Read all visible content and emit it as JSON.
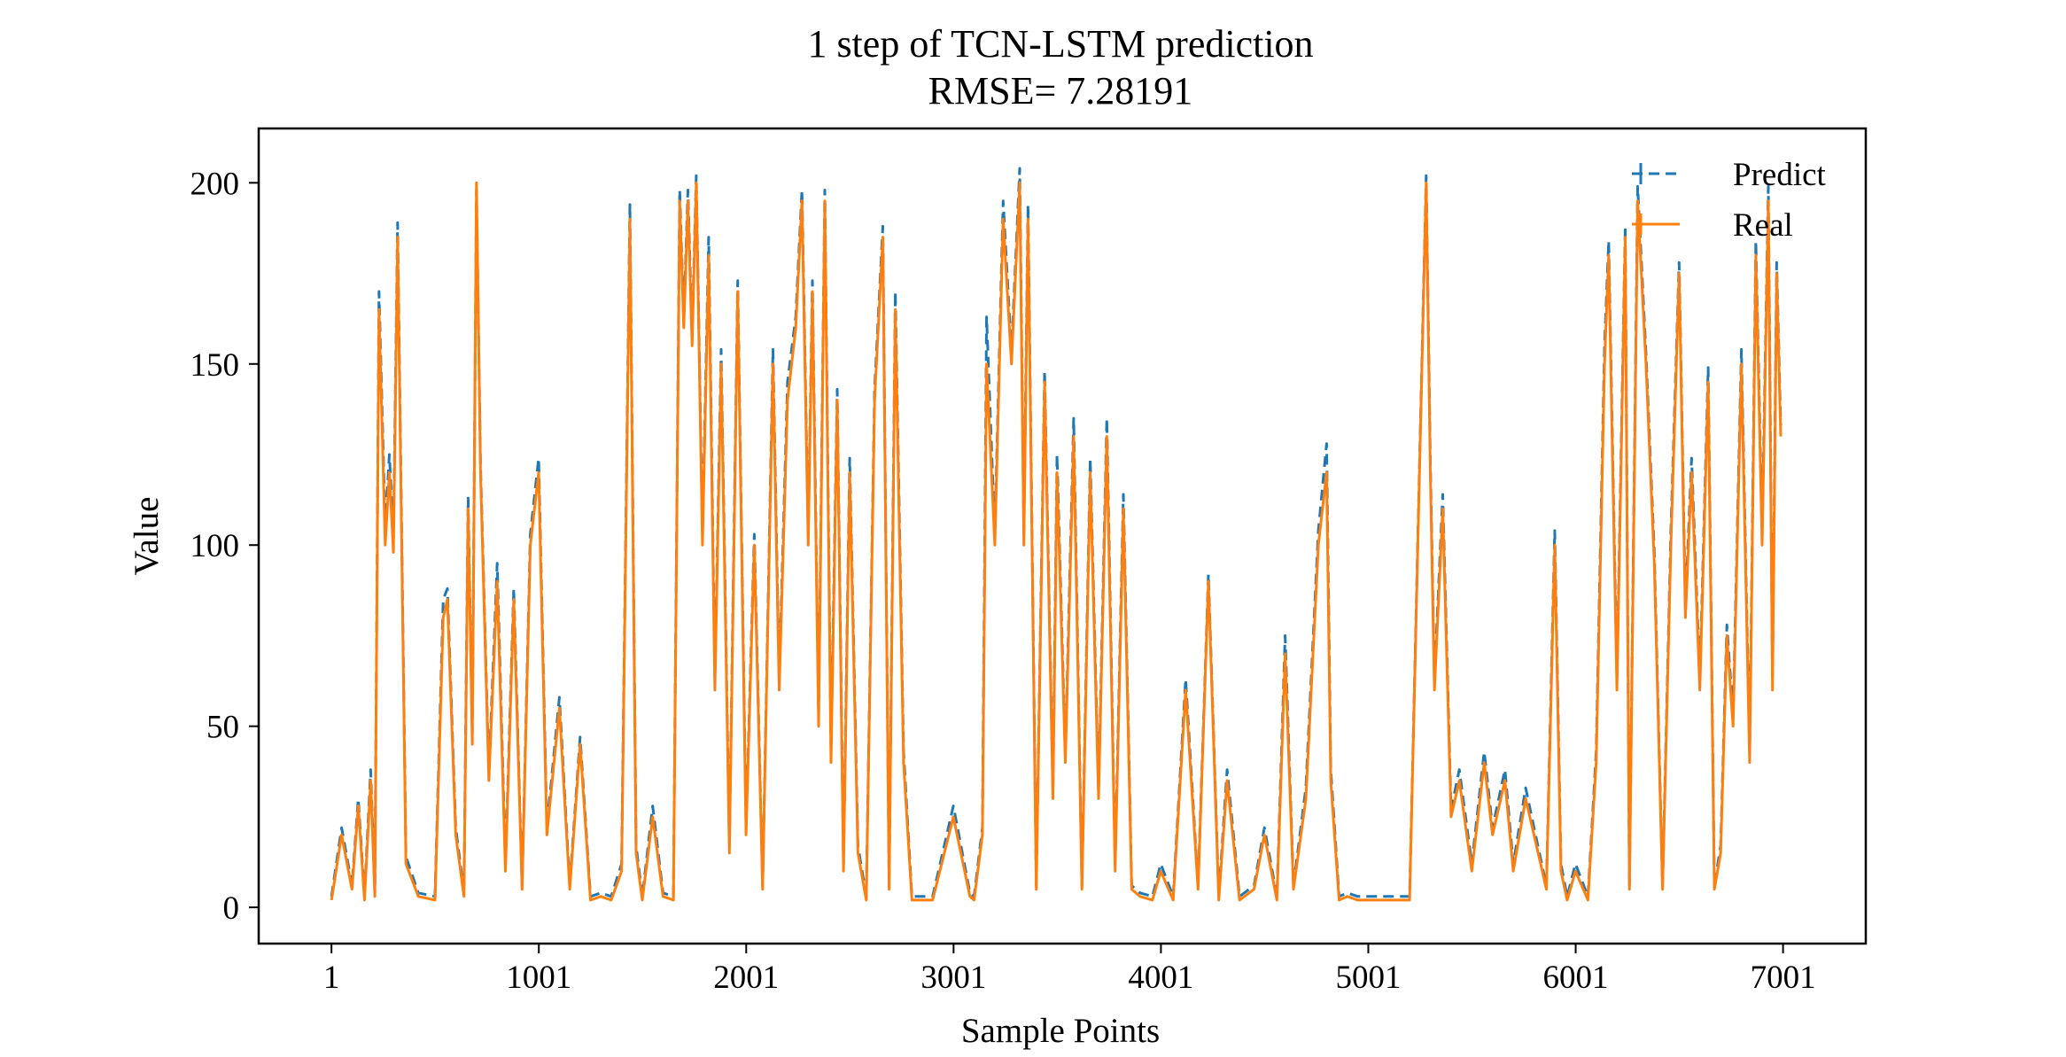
{
  "chart_data": {
    "type": "line",
    "title": "1 step of TCN-LSTM prediction",
    "subtitle": "RMSE= 7.28191",
    "xlabel": "Sample Points",
    "ylabel": "Value",
    "xlim": [
      -350,
      7400
    ],
    "ylim": [
      -10,
      215
    ],
    "x_ticks": [
      1,
      1001,
      2001,
      3001,
      4001,
      5001,
      6001,
      7001
    ],
    "x_tick_labels": [
      "1",
      "1001",
      "2001",
      "3001",
      "4001",
      "5001",
      "6001",
      "7001"
    ],
    "y_ticks": [
      0,
      50,
      100,
      150,
      200
    ],
    "y_tick_labels": [
      "0",
      "50",
      "100",
      "150",
      "200"
    ],
    "grid": false,
    "legend": {
      "position": "top-right",
      "entries": [
        "Predict",
        "Real"
      ]
    },
    "series_style": {
      "predict": {
        "color": "#1f77b4",
        "dash": "12 7"
      },
      "real": {
        "color": "#ff7f0e",
        "dash": ""
      }
    },
    "series": [
      {
        "name": "Real",
        "x": [
          1,
          50,
          100,
          130,
          160,
          190,
          210,
          230,
          260,
          280,
          300,
          320,
          360,
          420,
          500,
          540,
          560,
          600,
          640,
          660,
          680,
          700,
          720,
          760,
          800,
          840,
          880,
          920,
          960,
          1000,
          1040,
          1100,
          1150,
          1200,
          1250,
          1300,
          1350,
          1400,
          1440,
          1470,
          1500,
          1550,
          1600,
          1650,
          1680,
          1700,
          1720,
          1740,
          1760,
          1790,
          1820,
          1850,
          1880,
          1920,
          1960,
          2000,
          2040,
          2080,
          2130,
          2160,
          2200,
          2240,
          2270,
          2300,
          2320,
          2350,
          2380,
          2410,
          2440,
          2470,
          2500,
          2540,
          2580,
          2620,
          2660,
          2690,
          2720,
          2760,
          2800,
          2900,
          3000,
          3080,
          3100,
          3140,
          3160,
          3200,
          3240,
          3280,
          3320,
          3340,
          3360,
          3400,
          3440,
          3480,
          3500,
          3540,
          3580,
          3620,
          3660,
          3700,
          3740,
          3780,
          3820,
          3860,
          3900,
          3960,
          4000,
          4060,
          4120,
          4180,
          4230,
          4280,
          4320,
          4380,
          4450,
          4500,
          4560,
          4600,
          4640,
          4700,
          4760,
          4800,
          4820,
          4860,
          4900,
          4950,
          5000,
          5100,
          5200,
          5280,
          5300,
          5320,
          5360,
          5400,
          5440,
          5500,
          5560,
          5600,
          5660,
          5700,
          5760,
          5800,
          5860,
          5900,
          5930,
          5960,
          6000,
          6060,
          6100,
          6140,
          6160,
          6200,
          6240,
          6260,
          6300,
          6340,
          6380,
          6420,
          6460,
          6500,
          6530,
          6560,
          6600,
          6640,
          6670,
          6700,
          6730,
          6760,
          6800,
          6840,
          6870,
          6900,
          6930,
          6950,
          6970,
          6990
        ],
        "values": [
          2,
          20,
          5,
          28,
          2,
          35,
          3,
          165,
          100,
          120,
          98,
          185,
          12,
          3,
          2,
          80,
          85,
          20,
          3,
          110,
          45,
          200,
          120,
          35,
          90,
          10,
          85,
          5,
          100,
          120,
          20,
          55,
          5,
          45,
          2,
          3,
          2,
          10,
          190,
          15,
          2,
          25,
          3,
          2,
          195,
          160,
          195,
          155,
          200,
          100,
          180,
          60,
          150,
          15,
          170,
          20,
          100,
          5,
          150,
          60,
          140,
          160,
          195,
          100,
          170,
          50,
          195,
          40,
          140,
          10,
          120,
          15,
          2,
          140,
          185,
          5,
          165,
          40,
          2,
          2,
          25,
          3,
          2,
          20,
          150,
          100,
          190,
          150,
          200,
          100,
          190,
          5,
          145,
          30,
          120,
          40,
          130,
          5,
          120,
          30,
          130,
          10,
          110,
          5,
          3,
          2,
          10,
          2,
          60,
          5,
          90,
          2,
          35,
          2,
          5,
          20,
          2,
          70,
          5,
          30,
          100,
          120,
          35,
          2,
          3,
          2,
          2,
          2,
          2,
          200,
          120,
          60,
          110,
          25,
          35,
          10,
          40,
          20,
          35,
          10,
          30,
          20,
          5,
          100,
          10,
          2,
          10,
          2,
          40,
          150,
          180,
          60,
          185,
          5,
          195,
          150,
          95,
          5,
          100,
          175,
          80,
          120,
          60,
          145,
          5,
          15,
          75,
          50,
          150,
          40,
          180,
          100,
          195,
          60,
          175,
          130
        ]
      },
      {
        "name": "Predict",
        "x": [
          1,
          50,
          100,
          130,
          160,
          190,
          210,
          230,
          260,
          280,
          300,
          320,
          360,
          420,
          500,
          540,
          560,
          600,
          640,
          660,
          680,
          700,
          720,
          760,
          800,
          840,
          880,
          920,
          960,
          1000,
          1040,
          1100,
          1150,
          1200,
          1250,
          1300,
          1350,
          1400,
          1440,
          1470,
          1500,
          1550,
          1600,
          1650,
          1680,
          1700,
          1720,
          1740,
          1760,
          1790,
          1820,
          1850,
          1880,
          1920,
          1960,
          2000,
          2040,
          2080,
          2130,
          2160,
          2200,
          2240,
          2270,
          2300,
          2320,
          2350,
          2380,
          2410,
          2440,
          2470,
          2500,
          2540,
          2580,
          2620,
          2660,
          2690,
          2720,
          2760,
          2800,
          2900,
          3000,
          3080,
          3100,
          3140,
          3160,
          3200,
          3240,
          3280,
          3320,
          3340,
          3360,
          3400,
          3440,
          3480,
          3500,
          3540,
          3580,
          3620,
          3660,
          3700,
          3740,
          3780,
          3820,
          3860,
          3900,
          3960,
          4000,
          4060,
          4120,
          4180,
          4230,
          4280,
          4320,
          4380,
          4450,
          4500,
          4560,
          4600,
          4640,
          4700,
          4760,
          4800,
          4820,
          4860,
          4900,
          4950,
          5000,
          5100,
          5200,
          5280,
          5300,
          5320,
          5360,
          5400,
          5440,
          5500,
          5560,
          5600,
          5660,
          5700,
          5760,
          5800,
          5860,
          5900,
          5930,
          5960,
          6000,
          6060,
          6100,
          6140,
          6160,
          6200,
          6240,
          6260,
          6300,
          6340,
          6380,
          6420,
          6460,
          6500,
          6530,
          6560,
          6600,
          6640,
          6670,
          6700,
          6730,
          6760,
          6800,
          6840,
          6870,
          6900,
          6930,
          6950,
          6970,
          6990
        ],
        "values": [
          3,
          22,
          6,
          30,
          3,
          38,
          4,
          170,
          105,
          125,
          102,
          189,
          14,
          4,
          3,
          85,
          88,
          22,
          4,
          113,
          48,
          198,
          122,
          37,
          95,
          12,
          88,
          6,
          103,
          124,
          22,
          58,
          6,
          47,
          3,
          4,
          3,
          12,
          194,
          17,
          3,
          28,
          4,
          3,
          198,
          162,
          198,
          158,
          202,
          103,
          185,
          63,
          154,
          17,
          173,
          22,
          103,
          6,
          154,
          63,
          145,
          163,
          198,
          103,
          173,
          53,
          198,
          43,
          143,
          12,
          124,
          17,
          3,
          143,
          188,
          6,
          170,
          43,
          3,
          3,
          28,
          4,
          3,
          22,
          163,
          103,
          195,
          153,
          204,
          103,
          194,
          6,
          148,
          32,
          125,
          42,
          135,
          6,
          124,
          32,
          135,
          12,
          114,
          6,
          4,
          3,
          12,
          3,
          63,
          6,
          92,
          3,
          38,
          3,
          6,
          22,
          3,
          75,
          6,
          33,
          104,
          128,
          38,
          3,
          4,
          3,
          3,
          3,
          3,
          202,
          123,
          63,
          114,
          27,
          38,
          12,
          43,
          22,
          38,
          12,
          33,
          22,
          6,
          104,
          12,
          3,
          12,
          3,
          43,
          155,
          184,
          63,
          188,
          6,
          199,
          153,
          98,
          6,
          104,
          178,
          83,
          124,
          63,
          149,
          6,
          17,
          78,
          53,
          154,
          43,
          184,
          104,
          199,
          63,
          178,
          133
        ]
      }
    ]
  }
}
